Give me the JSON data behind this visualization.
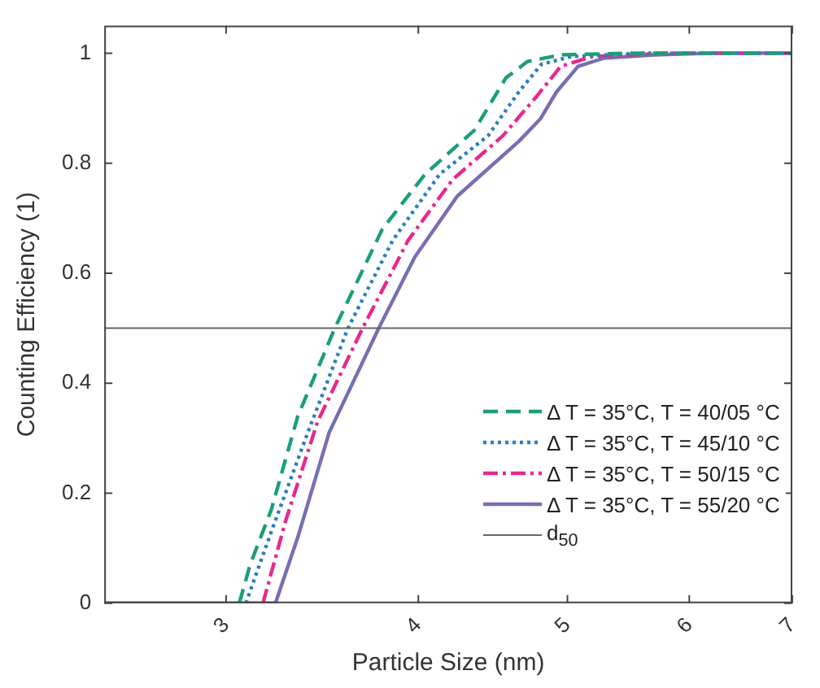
{
  "chart_data": {
    "type": "line",
    "xlabel": "Particle Size (nm)",
    "ylabel": "Counting Efficiency (1)",
    "log": "x",
    "xlim": [
      2.5,
      7
    ],
    "xticks": [
      3,
      4,
      5,
      6,
      7
    ],
    "ylim": [
      0,
      1.05
    ],
    "yticks": [
      0,
      0.2,
      0.4,
      0.6,
      0.8,
      1
    ],
    "legend": "bottom right",
    "marker": "none",
    "grid": false,
    "series": [
      {
        "name": "Δ T = 35°C, T = 40/05 °C",
        "color": "#1b9e77",
        "line_style": "dashed",
        "x": [
          3.06,
          3.11,
          3.21,
          3.34,
          3.53,
          3.79,
          4.04,
          4.35,
          4.56,
          4.71,
          4.95,
          5.5,
          7
        ],
        "values": [
          0,
          0.07,
          0.17,
          0.34,
          0.5,
          0.68,
          0.78,
          0.86,
          0.955,
          0.985,
          0.997,
          1,
          1
        ]
      },
      {
        "name": "Δ T = 35°C, T = 45/10 °C",
        "color": "#2a7fc0",
        "line_style": "dotted",
        "x": [
          3.09,
          3.21,
          3.39,
          3.6,
          3.85,
          4.13,
          4.44,
          4.65,
          4.81,
          5.03,
          5.6,
          7
        ],
        "values": [
          0,
          0.13,
          0.31,
          0.5,
          0.66,
          0.78,
          0.85,
          0.93,
          0.98,
          0.994,
          1,
          1
        ]
      },
      {
        "name": "Δ T = 35°C, T = 50/15 °C",
        "color": "#e7298a",
        "line_style": "dashdot",
        "x": [
          3.17,
          3.28,
          3.44,
          3.68,
          3.94,
          4.21,
          4.54,
          4.77,
          4.95,
          5.19,
          5.8,
          7
        ],
        "values": [
          0,
          0.15,
          0.33,
          0.5,
          0.66,
          0.77,
          0.85,
          0.92,
          0.976,
          0.994,
          1,
          1
        ]
      },
      {
        "name": "Δ T = 35°C, T = 55/20 °C",
        "color": "#7570b3",
        "line_style": "solid",
        "x": [
          2.5,
          3.23,
          3.34,
          3.5,
          3.77,
          3.98,
          4.24,
          4.65,
          4.8,
          4.92,
          5.08,
          5.28,
          5.69,
          6.2,
          7
        ],
        "values": [
          0,
          0,
          0.12,
          0.31,
          0.5,
          0.63,
          0.74,
          0.84,
          0.88,
          0.93,
          0.976,
          0.991,
          0.997,
          1,
          1
        ]
      }
    ],
    "ref_lines": [
      {
        "axis": "y",
        "value": 0.5,
        "label": "d$_{50}$",
        "color": "#666666"
      }
    ]
  }
}
